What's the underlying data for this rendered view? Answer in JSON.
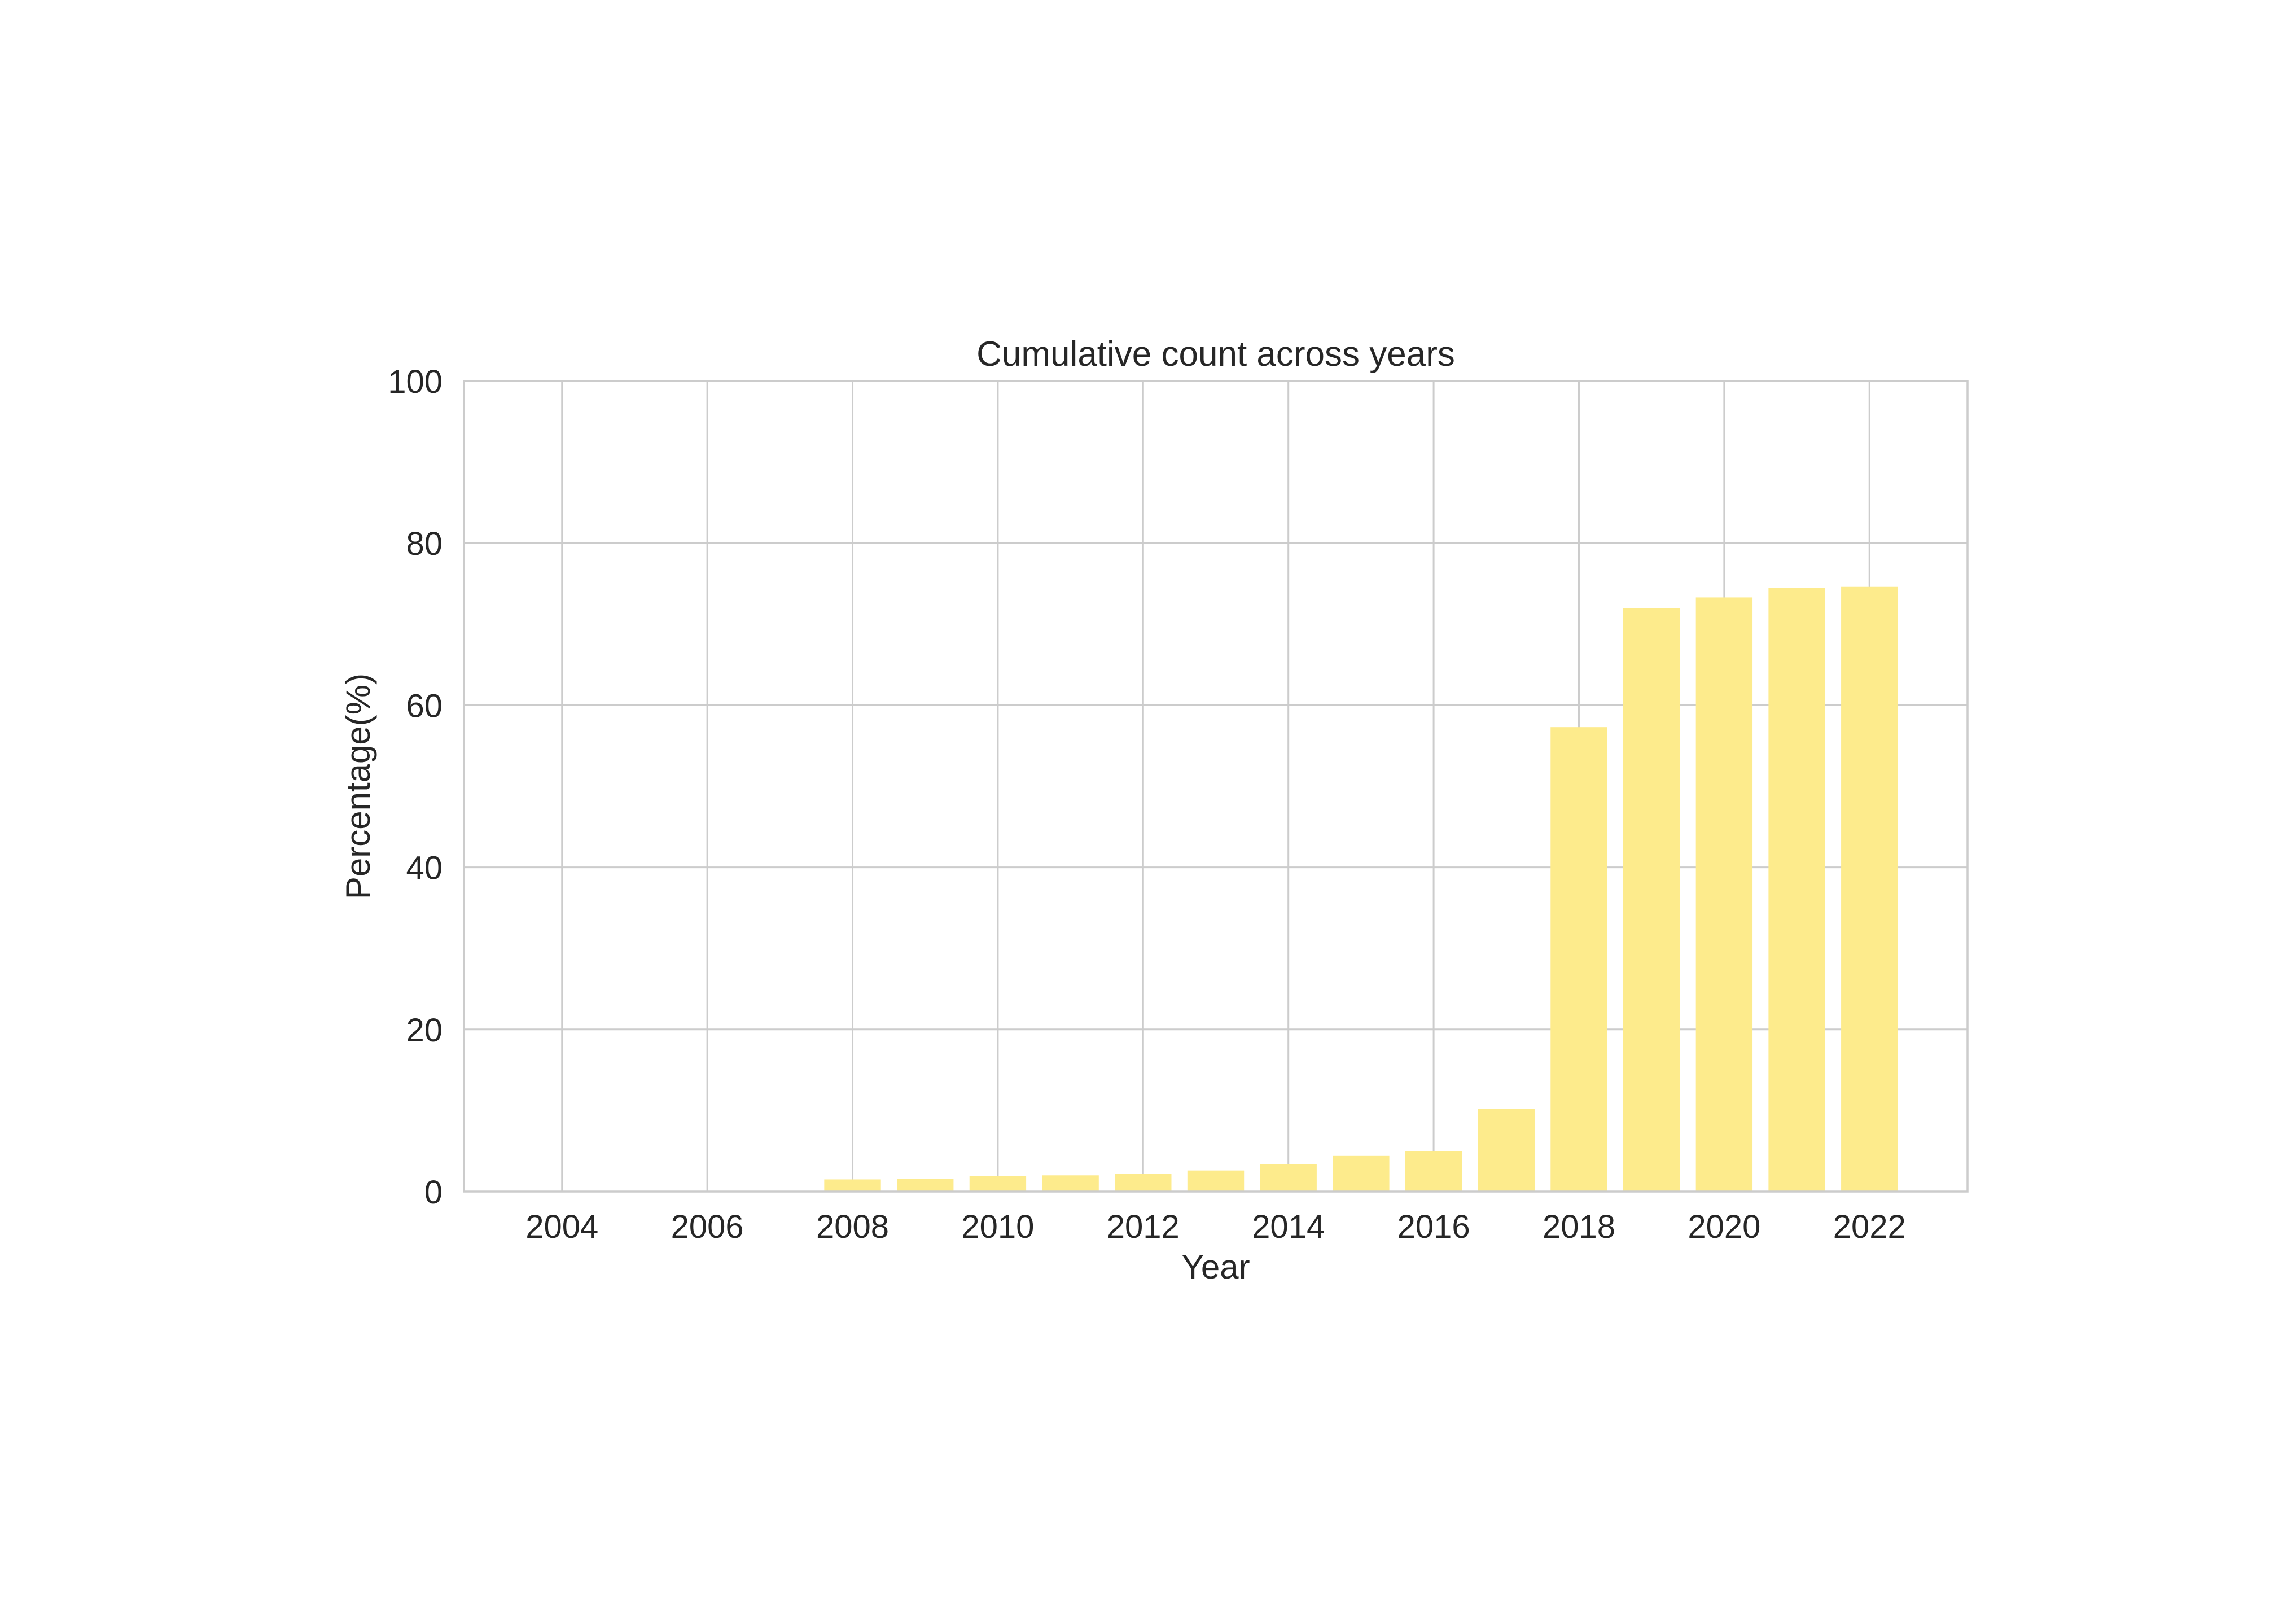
{
  "chart_data": {
    "type": "bar",
    "title": "Cumulative count across years",
    "xlabel": "Year",
    "ylabel": "Percentage(%)",
    "categories": [
      2004,
      2005,
      2006,
      2007,
      2008,
      2009,
      2010,
      2011,
      2012,
      2013,
      2014,
      2015,
      2016,
      2017,
      2018,
      2019,
      2020,
      2021,
      2022
    ],
    "values": [
      0,
      0,
      0,
      0,
      1.5,
      1.6,
      1.9,
      2.0,
      2.2,
      2.6,
      3.4,
      4.4,
      5.0,
      10.2,
      57.3,
      72.0,
      73.3,
      74.5,
      74.6
    ],
    "xlim": [
      2002.65,
      2023.35
    ],
    "ylim": [
      0,
      100
    ],
    "xticks": [
      "2004",
      "2006",
      "2008",
      "2010",
      "2012",
      "2014",
      "2016",
      "2018",
      "2020",
      "2022"
    ],
    "yticks": [
      "0",
      "20",
      "40",
      "60",
      "80",
      "100"
    ],
    "bar_color": "#fdeb8c",
    "grid": true,
    "legend": "none"
  }
}
